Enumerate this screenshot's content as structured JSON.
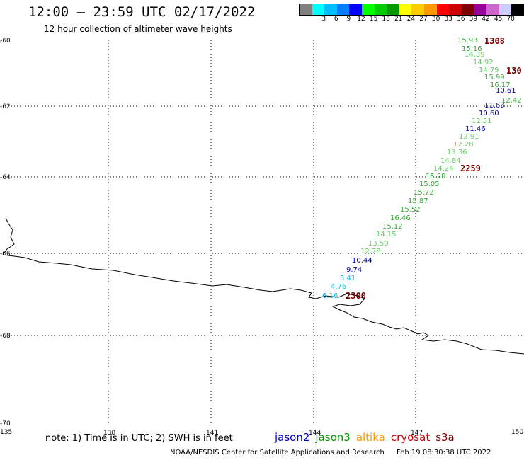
{
  "header": {
    "title": "12:00 – 23:59 UTC 02/17/2022",
    "subtitle": "12 hour collection of altimeter wave heights"
  },
  "legend": {
    "unit": "(ft)",
    "bins": [
      {
        "label": "",
        "color": "#808080"
      },
      {
        "label": "3",
        "color": "#00ffff"
      },
      {
        "label": "6",
        "color": "#00bfff"
      },
      {
        "label": "9",
        "color": "#0080ff"
      },
      {
        "label": "12",
        "color": "#0000ff"
      },
      {
        "label": "15",
        "color": "#00ff00"
      },
      {
        "label": "18",
        "color": "#00cc00"
      },
      {
        "label": "21",
        "color": "#009900"
      },
      {
        "label": "24",
        "color": "#ffff00"
      },
      {
        "label": "27",
        "color": "#ffcc00"
      },
      {
        "label": "30",
        "color": "#ff9900"
      },
      {
        "label": "33",
        "color": "#ff0000"
      },
      {
        "label": "36",
        "color": "#cc0000"
      },
      {
        "label": "39",
        "color": "#800000"
      },
      {
        "label": "42",
        "color": "#990099"
      },
      {
        "label": "45",
        "color": "#cc66cc"
      },
      {
        "label": "70",
        "color": "#ccccff"
      },
      {
        "label": "",
        "color": "#000000"
      }
    ]
  },
  "map": {
    "lat_labels": [
      "-60",
      "-62",
      "-64",
      "-66",
      "-68",
      "-70"
    ],
    "lon_labels": [
      "135",
      "138",
      "141",
      "144",
      "147",
      "150"
    ],
    "observations": [
      {
        "value": "15.93",
        "color": "#33aa33"
      },
      {
        "value": "15.16",
        "color": "#33aa33"
      },
      {
        "value": "14.39",
        "color": "#66cc66"
      },
      {
        "value": "14.92",
        "color": "#66cc66"
      },
      {
        "value": "14.79",
        "color": "#66cc66"
      },
      {
        "value": "15.99",
        "color": "#33aa33"
      },
      {
        "value": "16.17",
        "color": "#33aa33"
      },
      {
        "value": "10.61",
        "color": "#0000aa"
      },
      {
        "value": "12.42",
        "color": "#33aa33"
      },
      {
        "value": "11.63",
        "color": "#0000aa"
      },
      {
        "value": "10.60",
        "color": "#0000aa"
      },
      {
        "value": "12.51",
        "color": "#66cc66"
      },
      {
        "value": "11.46",
        "color": "#0000aa"
      },
      {
        "value": "12.91",
        "color": "#66cc66"
      },
      {
        "value": "12.28",
        "color": "#66cc66"
      },
      {
        "value": "13.36",
        "color": "#66cc66"
      },
      {
        "value": "14.84",
        "color": "#66cc66"
      },
      {
        "value": "14.24",
        "color": "#66cc66"
      },
      {
        "value": "15.29",
        "color": "#33aa33"
      },
      {
        "value": "15.05",
        "color": "#33aa33"
      },
      {
        "value": "15.72",
        "color": "#33aa33"
      },
      {
        "value": "15.87",
        "color": "#33aa33"
      },
      {
        "value": "15.52",
        "color": "#33aa33"
      },
      {
        "value": "16.46",
        "color": "#33aa33"
      },
      {
        "value": "15.12",
        "color": "#33aa33"
      },
      {
        "value": "14.15",
        "color": "#66cc66"
      },
      {
        "value": "13.50",
        "color": "#66cc66"
      },
      {
        "value": "12.78",
        "color": "#66cc66"
      },
      {
        "value": "10.44",
        "color": "#0000aa"
      },
      {
        "value": "9.74",
        "color": "#0000aa"
      },
      {
        "value": "5.41",
        "color": "#00bbee"
      },
      {
        "value": "4.76",
        "color": "#00ccee"
      },
      {
        "value": "6.16",
        "color": "#00bbee"
      }
    ],
    "time_labels": [
      "1308",
      "130",
      "2259",
      "2300"
    ]
  },
  "footer": {
    "note": "note: 1) Time is in UTC; 2) SWH is in feet",
    "satellites": [
      {
        "name": "jason2",
        "color": "#0000cc"
      },
      {
        "name": "jason3",
        "color": "#009900"
      },
      {
        "name": "altika",
        "color": "#ff9900"
      },
      {
        "name": "cryosat",
        "color": "#cc0000"
      },
      {
        "name": "s3a",
        "color": "#800000"
      }
    ],
    "credit": "NOAA/NESDIS Center for Satellite Applications and Research",
    "timestamp": "Feb 19 08:30:38 UTC 2022"
  }
}
